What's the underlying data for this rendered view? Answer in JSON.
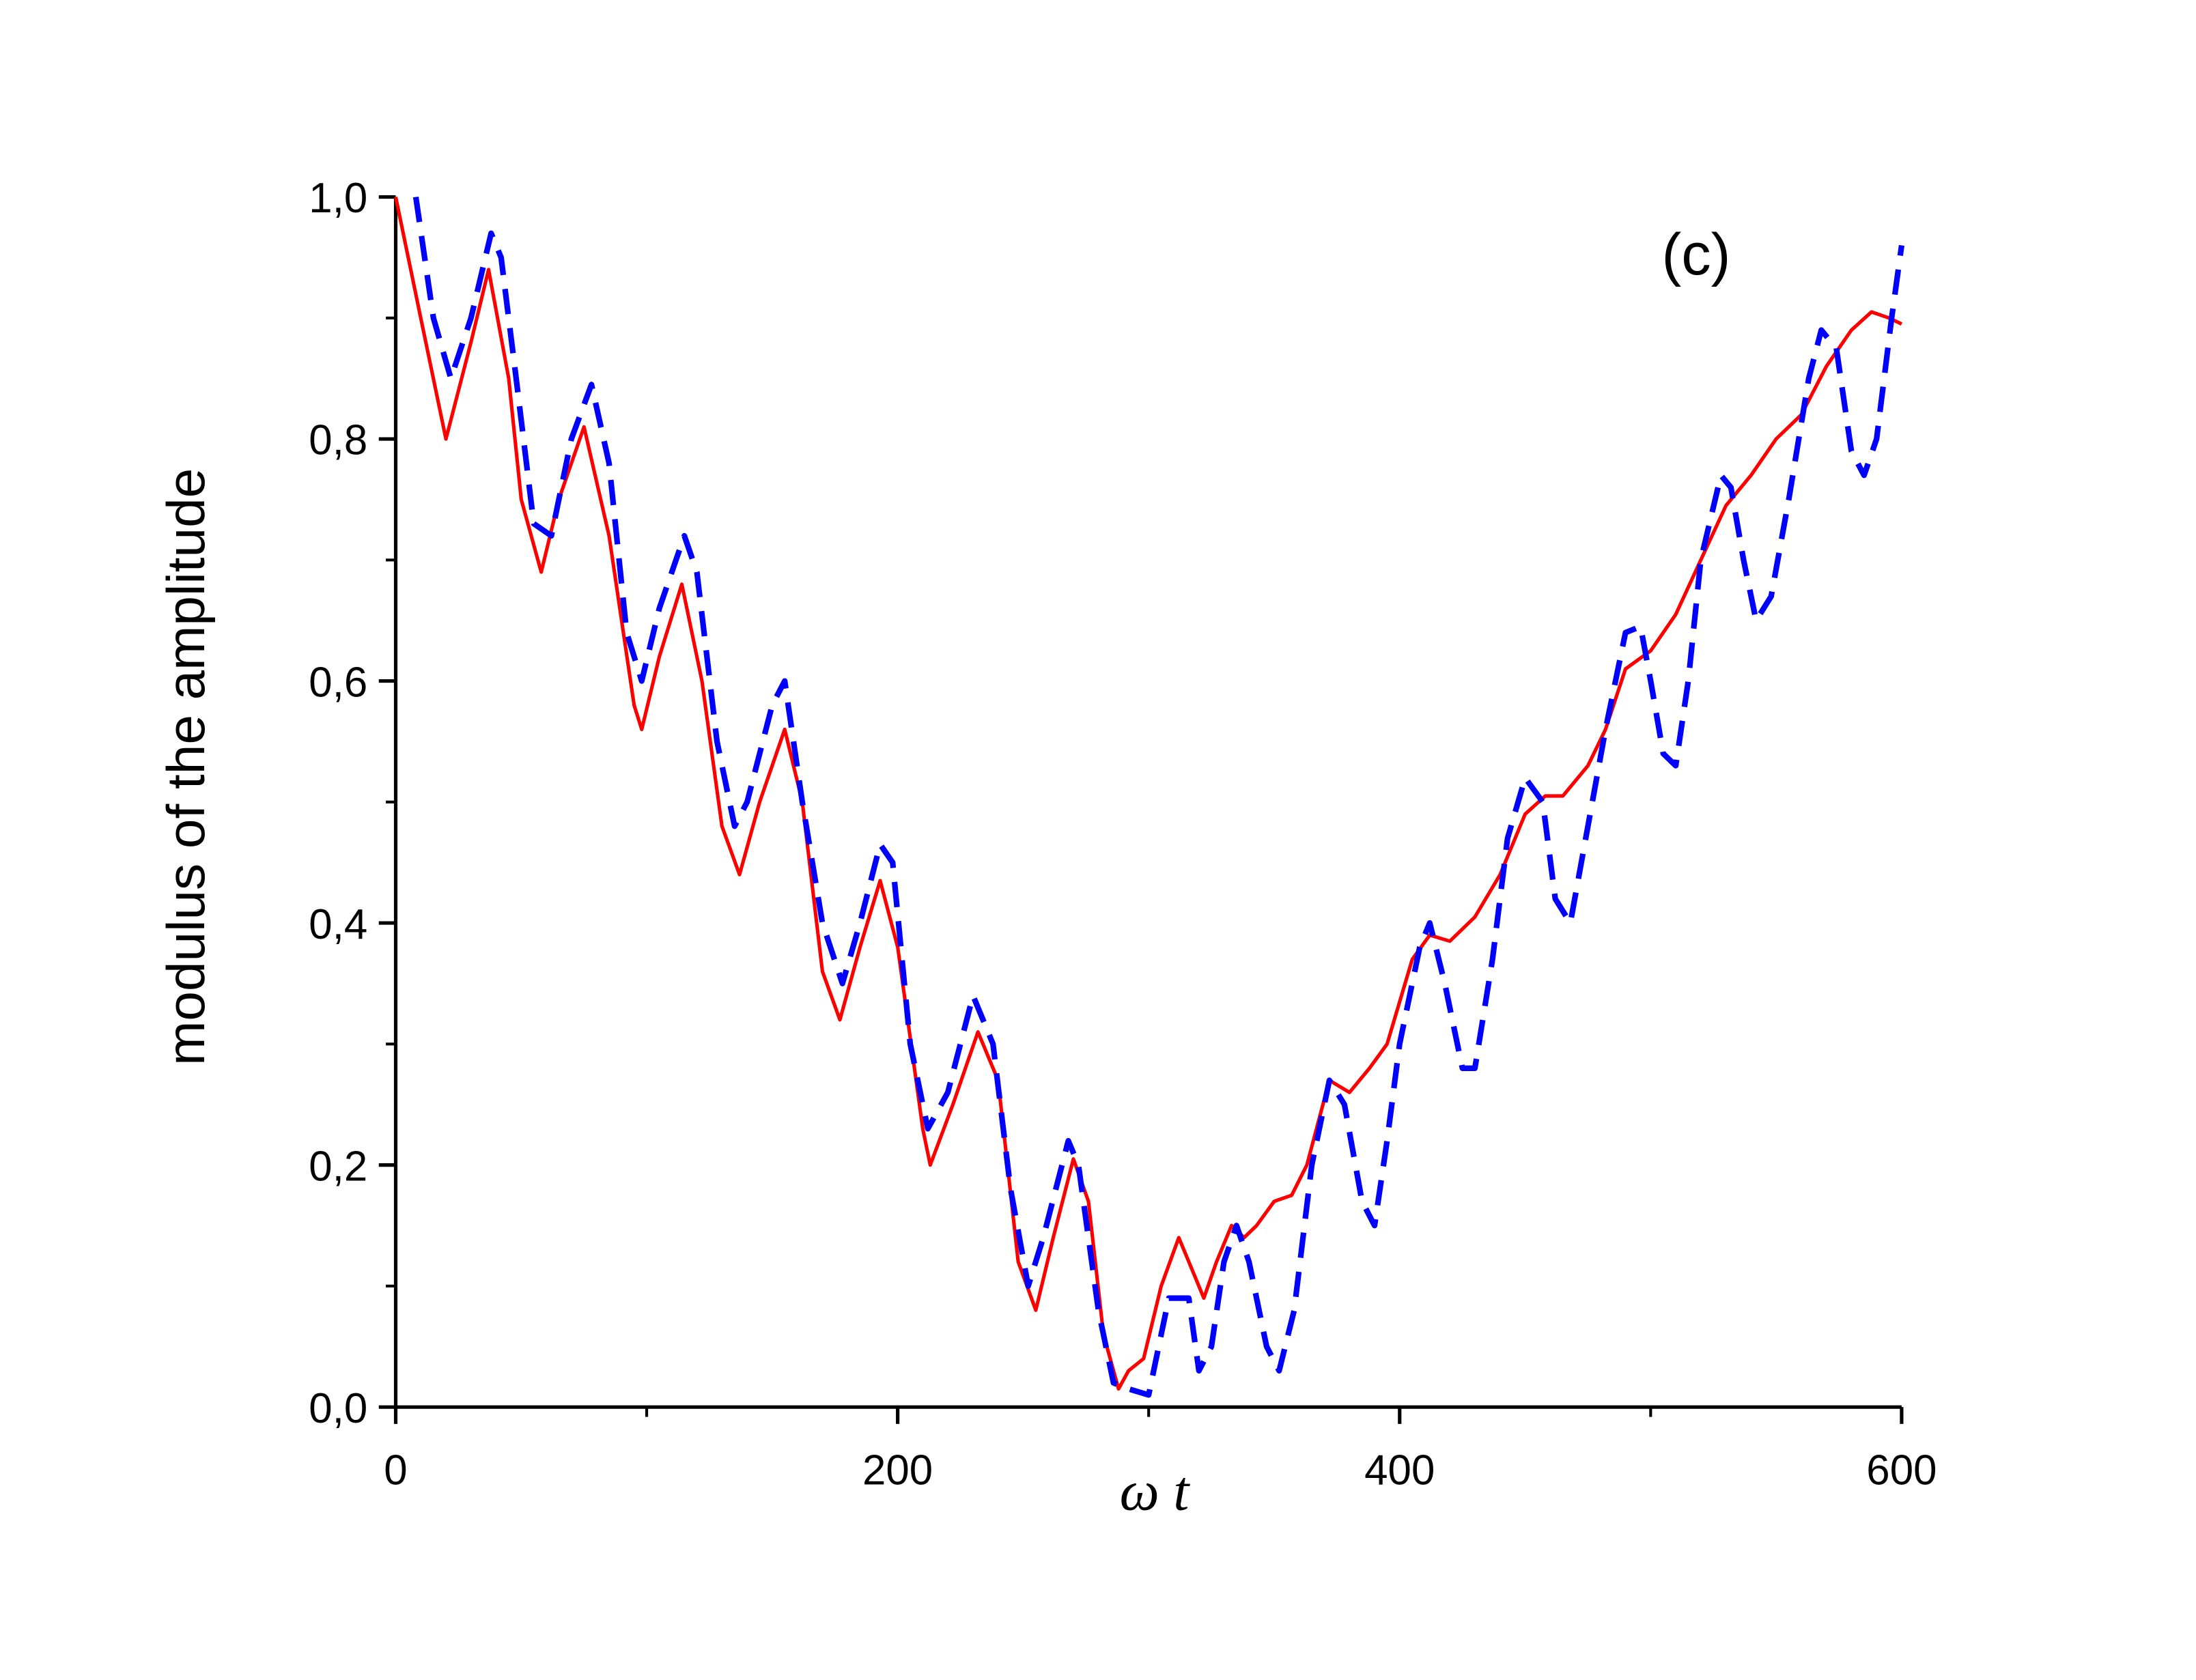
{
  "chart_data": {
    "type": "line",
    "ylabel": "modulus of the amplitude",
    "xlabel": "ω t",
    "annotation": "(c)",
    "xlim": [
      0,
      600
    ],
    "ylim": [
      0,
      1
    ],
    "xticks": [
      0,
      200,
      400,
      600
    ],
    "xminorticks": [
      100,
      300,
      500
    ],
    "yticks": [
      {
        "value": 0,
        "label": "0,0"
      },
      {
        "value": 0.2,
        "label": "0,2"
      },
      {
        "value": 0.4,
        "label": "0,4"
      },
      {
        "value": 0.6,
        "label": "0,6"
      },
      {
        "value": 0.8,
        "label": "0,8"
      },
      {
        "value": 1,
        "label": "1,0"
      }
    ],
    "yminorticks": [
      0.1,
      0.3,
      0.5,
      0.7,
      0.9
    ],
    "series": [
      {
        "color": "#ff0000",
        "dashed": false,
        "x": [
          0,
          10,
          20,
          30,
          37,
          45,
          50,
          58,
          65,
          75,
          85,
          95,
          98,
          105,
          114,
          122,
          130,
          137,
          145,
          155,
          162,
          170,
          177,
          185,
          193,
          200,
          210,
          213,
          222,
          232,
          240,
          248,
          255,
          262,
          270,
          276,
          282,
          288,
          292,
          298,
          305,
          312,
          318,
          322,
          327,
          333,
          338,
          343,
          350,
          357,
          363,
          372,
          380,
          388,
          395,
          405,
          412,
          420,
          430,
          440,
          450,
          458,
          465,
          475,
          482,
          490,
          500,
          510,
          520,
          530,
          540,
          550,
          560,
          570,
          580,
          588,
          595,
          600
        ],
        "values": [
          1.0,
          0.9,
          0.8,
          0.88,
          0.94,
          0.85,
          0.75,
          0.69,
          0.75,
          0.81,
          0.72,
          0.58,
          0.56,
          0.62,
          0.68,
          0.6,
          0.48,
          0.44,
          0.5,
          0.56,
          0.5,
          0.36,
          0.32,
          0.38,
          0.435,
          0.38,
          0.23,
          0.2,
          0.25,
          0.31,
          0.27,
          0.12,
          0.08,
          0.14,
          0.205,
          0.17,
          0.06,
          0.015,
          0.03,
          0.04,
          0.1,
          0.14,
          0.11,
          0.09,
          0.12,
          0.15,
          0.14,
          0.15,
          0.17,
          0.175,
          0.2,
          0.27,
          0.26,
          0.28,
          0.3,
          0.37,
          0.39,
          0.385,
          0.405,
          0.44,
          0.49,
          0.505,
          0.505,
          0.53,
          0.56,
          0.61,
          0.625,
          0.655,
          0.7,
          0.745,
          0.77,
          0.8,
          0.82,
          0.86,
          0.89,
          0.905,
          0.9,
          0.895
        ]
      },
      {
        "color": "#0000ff",
        "dashed": true,
        "x": [
          8,
          15,
          22,
          30,
          38,
          42,
          48,
          55,
          62,
          70,
          78,
          85,
          92,
          98,
          105,
          115,
          120,
          128,
          135,
          140,
          150,
          155,
          162,
          170,
          178,
          185,
          193,
          198,
          205,
          212,
          220,
          230,
          238,
          245,
          252,
          258,
          268,
          272,
          280,
          286,
          292,
          300,
          305,
          308,
          316,
          320,
          325,
          330,
          335,
          340,
          347,
          352,
          358,
          365,
          372,
          378,
          385,
          390,
          395,
          400,
          408,
          412,
          418,
          425,
          430,
          437,
          443,
          450,
          457,
          462,
          468,
          475,
          482,
          490,
          496,
          500,
          505,
          510,
          515,
          520,
          528,
          532,
          537,
          542,
          548,
          555,
          563,
          568,
          574,
          580,
          585,
          590,
          596,
          600
        ],
        "values": [
          1.0,
          0.9,
          0.85,
          0.9,
          0.97,
          0.95,
          0.85,
          0.73,
          0.72,
          0.8,
          0.845,
          0.78,
          0.64,
          0.6,
          0.66,
          0.72,
          0.69,
          0.55,
          0.48,
          0.5,
          0.58,
          0.6,
          0.5,
          0.4,
          0.35,
          0.4,
          0.465,
          0.45,
          0.3,
          0.23,
          0.26,
          0.34,
          0.3,
          0.18,
          0.1,
          0.14,
          0.22,
          0.2,
          0.08,
          0.02,
          0.015,
          0.01,
          0.06,
          0.09,
          0.09,
          0.03,
          0.05,
          0.12,
          0.15,
          0.12,
          0.05,
          0.03,
          0.08,
          0.2,
          0.27,
          0.25,
          0.17,
          0.15,
          0.22,
          0.3,
          0.38,
          0.4,
          0.35,
          0.28,
          0.28,
          0.37,
          0.47,
          0.52,
          0.5,
          0.42,
          0.4,
          0.48,
          0.56,
          0.64,
          0.645,
          0.6,
          0.54,
          0.53,
          0.6,
          0.7,
          0.77,
          0.76,
          0.7,
          0.65,
          0.67,
          0.75,
          0.85,
          0.89,
          0.875,
          0.79,
          0.77,
          0.8,
          0.9,
          0.96
        ]
      }
    ]
  }
}
